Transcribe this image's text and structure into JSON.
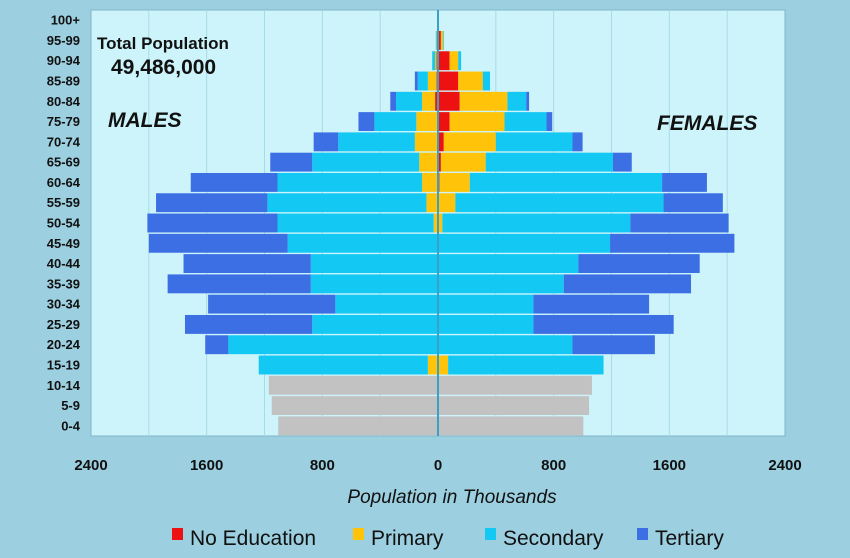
{
  "chart_data": {
    "type": "bar",
    "title": "Total Population",
    "total": "49,486,000",
    "xlabel": "Population in Thousands",
    "left_label": "MALES",
    "right_label": "FEMALES",
    "xlim": [
      -2400,
      2400
    ],
    "x_ticks": [
      -2400,
      -1600,
      -800,
      0,
      800,
      1600,
      2400
    ],
    "x_tick_labels": [
      "2400",
      "1600",
      "800",
      "0",
      "800",
      "1600",
      "2400"
    ],
    "categories": [
      "0-4",
      "5-9",
      "10-14",
      "15-19",
      "20-24",
      "25-29",
      "30-34",
      "35-39",
      "40-44",
      "45-49",
      "50-54",
      "55-59",
      "60-64",
      "65-69",
      "70-74",
      "75-79",
      "80-84",
      "85-89",
      "90-94",
      "95-99",
      "100+"
    ],
    "legend": [
      {
        "name": "No Education",
        "color": "#ee1111"
      },
      {
        "name": "Primary",
        "color": "#ffc40a"
      },
      {
        "name": "Secondary",
        "color": "#14c8f4"
      },
      {
        "name": "Tertiary",
        "color": "#3c6ee4"
      }
    ],
    "under_age_color": "#c2c2c2",
    "males": [
      {
        "age": "0-4",
        "under_age": 1105
      },
      {
        "age": "5-9",
        "under_age": 1150
      },
      {
        "age": "10-14",
        "under_age": 1170
      },
      {
        "age": "15-19",
        "no_education": 0,
        "primary": 70,
        "secondary": 1170,
        "tertiary": 0
      },
      {
        "age": "20-24",
        "no_education": 0,
        "primary": 0,
        "secondary": 1450,
        "tertiary": 160
      },
      {
        "age": "25-29",
        "no_education": 0,
        "primary": 0,
        "secondary": 870,
        "tertiary": 880
      },
      {
        "age": "30-34",
        "no_education": 0,
        "primary": 0,
        "secondary": 710,
        "tertiary": 880
      },
      {
        "age": "35-39",
        "no_education": 0,
        "primary": 0,
        "secondary": 880,
        "tertiary": 990
      },
      {
        "age": "40-44",
        "no_education": 0,
        "primary": 0,
        "secondary": 880,
        "tertiary": 880
      },
      {
        "age": "45-49",
        "no_education": 0,
        "primary": 0,
        "secondary": 1040,
        "tertiary": 960
      },
      {
        "age": "50-54",
        "no_education": 0,
        "primary": 30,
        "secondary": 1080,
        "tertiary": 900
      },
      {
        "age": "55-59",
        "no_education": 0,
        "primary": 80,
        "secondary": 1100,
        "tertiary": 770
      },
      {
        "age": "60-64",
        "no_education": 0,
        "primary": 110,
        "secondary": 1000,
        "tertiary": 600
      },
      {
        "age": "65-69",
        "no_education": 0,
        "primary": 130,
        "secondary": 740,
        "tertiary": 290
      },
      {
        "age": "70-74",
        "no_education": 0,
        "primary": 160,
        "secondary": 530,
        "tertiary": 170
      },
      {
        "age": "75-79",
        "no_education": 0,
        "primary": 150,
        "secondary": 290,
        "tertiary": 110
      },
      {
        "age": "80-84",
        "no_education": 20,
        "primary": 90,
        "secondary": 180,
        "tertiary": 40
      },
      {
        "age": "85-89",
        "no_education": 10,
        "primary": 60,
        "secondary": 70,
        "tertiary": 20
      },
      {
        "age": "90-94",
        "no_education": 10,
        "primary": 10,
        "secondary": 20,
        "tertiary": 0
      },
      {
        "age": "95-99",
        "no_education": 5,
        "primary": 5,
        "secondary": 5,
        "tertiary": 0
      },
      {
        "age": "100+",
        "no_education": 0,
        "primary": 0,
        "secondary": 5,
        "tertiary": 0
      }
    ],
    "females": [
      {
        "age": "0-4",
        "under_age": 1005
      },
      {
        "age": "5-9",
        "under_age": 1045
      },
      {
        "age": "10-14",
        "under_age": 1065
      },
      {
        "age": "15-19",
        "no_education": 0,
        "primary": 70,
        "secondary": 1075,
        "tertiary": 0
      },
      {
        "age": "20-24",
        "no_education": 0,
        "primary": 0,
        "secondary": 930,
        "tertiary": 570
      },
      {
        "age": "25-29",
        "no_education": 0,
        "primary": 0,
        "secondary": 660,
        "tertiary": 970
      },
      {
        "age": "30-34",
        "no_education": 0,
        "primary": 0,
        "secondary": 660,
        "tertiary": 800
      },
      {
        "age": "35-39",
        "no_education": 0,
        "primary": 0,
        "secondary": 870,
        "tertiary": 880
      },
      {
        "age": "40-44",
        "no_education": 0,
        "primary": 0,
        "secondary": 970,
        "tertiary": 840
      },
      {
        "age": "45-49",
        "no_education": 0,
        "primary": 0,
        "secondary": 1190,
        "tertiary": 860
      },
      {
        "age": "50-54",
        "no_education": 0,
        "primary": 30,
        "secondary": 1300,
        "tertiary": 680
      },
      {
        "age": "55-59",
        "no_education": 0,
        "primary": 120,
        "secondary": 1440,
        "tertiary": 410
      },
      {
        "age": "60-64",
        "no_education": 10,
        "primary": 210,
        "secondary": 1330,
        "tertiary": 310
      },
      {
        "age": "65-69",
        "no_education": 20,
        "primary": 310,
        "secondary": 880,
        "tertiary": 130
      },
      {
        "age": "70-74",
        "no_education": 40,
        "primary": 360,
        "secondary": 530,
        "tertiary": 70
      },
      {
        "age": "75-79",
        "no_education": 80,
        "primary": 380,
        "secondary": 290,
        "tertiary": 40
      },
      {
        "age": "80-84",
        "no_education": 150,
        "primary": 330,
        "secondary": 130,
        "tertiary": 20
      },
      {
        "age": "85-89",
        "no_education": 140,
        "primary": 170,
        "secondary": 50,
        "tertiary": 0
      },
      {
        "age": "90-94",
        "no_education": 80,
        "primary": 60,
        "secondary": 20,
        "tertiary": 0
      },
      {
        "age": "95-99",
        "no_education": 20,
        "primary": 15,
        "secondary": 5,
        "tertiary": 0
      },
      {
        "age": "100+",
        "no_education": 0,
        "primary": 0,
        "secondary": 5,
        "tertiary": 0
      }
    ]
  }
}
